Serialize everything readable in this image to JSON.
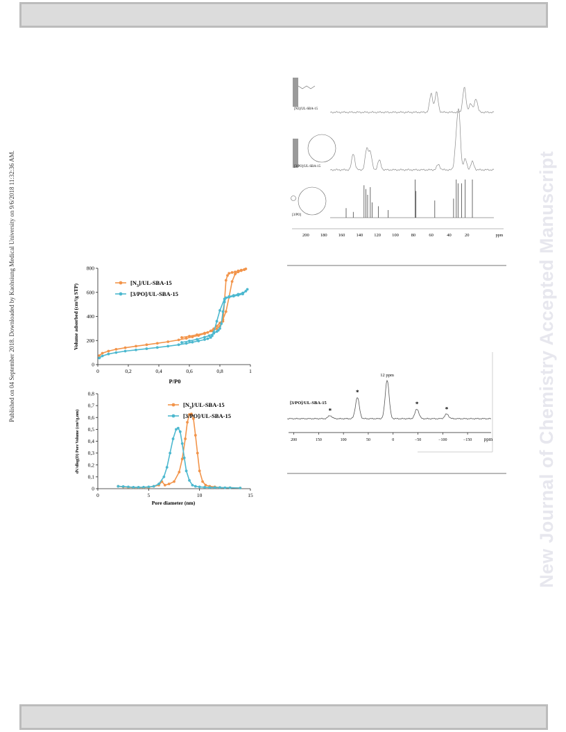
{
  "header": {
    "text": ""
  },
  "footer": {
    "text": ""
  },
  "sidebar_left": {
    "text": "Published on 04 September 2018. Downloaded by Kaohsiung Medical University on 9/6/2018 11:32:36 AM."
  },
  "watermark": {
    "text": "New Journal of Chemistry Accepted Manuscript"
  },
  "chart_data": [
    {
      "type": "line",
      "title": "",
      "xlabel": "P/P0",
      "ylabel": "Volume adsorbed (cm³/g STP)",
      "xlim": [
        0,
        1
      ],
      "ylim": [
        0,
        800
      ],
      "x_ticks": [
        "0",
        "0,2",
        "0,4",
        "0,6",
        "0,8",
        "1"
      ],
      "y_ticks": [
        "0",
        "200",
        "400",
        "600",
        "800"
      ],
      "legend_position": "top-left",
      "series": [
        {
          "name": "[N3]/UL-SBA-15",
          "color": "#f2944a",
          "x": [
            0.01,
            0.03,
            0.07,
            0.12,
            0.18,
            0.25,
            0.32,
            0.39,
            0.46,
            0.53,
            0.58,
            0.62,
            0.66,
            0.7,
            0.72,
            0.74,
            0.76,
            0.78,
            0.8,
            0.82,
            0.84,
            0.86,
            0.88,
            0.9,
            0.92,
            0.94,
            0.96,
            0.97,
            0.96,
            0.94,
            0.92,
            0.9,
            0.88,
            0.86,
            0.85,
            0.84,
            0.83,
            0.82,
            0.8,
            0.78,
            0.75,
            0.7,
            0.65,
            0.6,
            0.55
          ],
          "y": [
            75,
            95,
            112,
            127,
            140,
            153,
            165,
            177,
            190,
            205,
            218,
            230,
            242,
            257,
            267,
            280,
            298,
            320,
            345,
            375,
            440,
            560,
            690,
            752,
            770,
            780,
            788,
            795,
            790,
            785,
            778,
            770,
            765,
            758,
            740,
            700,
            520,
            360,
            320,
            298,
            280,
            262,
            248,
            236,
            225
          ]
        },
        {
          "name": "[3/PO]/UL-SBA-15",
          "color": "#4cb8cf",
          "x": [
            0.01,
            0.03,
            0.07,
            0.12,
            0.18,
            0.25,
            0.32,
            0.39,
            0.46,
            0.53,
            0.58,
            0.62,
            0.66,
            0.7,
            0.72,
            0.74,
            0.75,
            0.76,
            0.78,
            0.8,
            0.83,
            0.86,
            0.89,
            0.92,
            0.95,
            0.98,
            0.97,
            0.95,
            0.92,
            0.89,
            0.86,
            0.84,
            0.83,
            0.82,
            0.81,
            0.8,
            0.79,
            0.78,
            0.76,
            0.73,
            0.7,
            0.65,
            0.6,
            0.55
          ],
          "y": [
            55,
            72,
            88,
            100,
            112,
            122,
            132,
            142,
            153,
            165,
            176,
            186,
            196,
            208,
            215,
            225,
            240,
            270,
            360,
            450,
            545,
            560,
            568,
            576,
            586,
            625,
            610,
            595,
            585,
            575,
            565,
            555,
            520,
            440,
            340,
            300,
            285,
            275,
            260,
            240,
            228,
            210,
            196,
            184
          ]
        }
      ]
    },
    {
      "type": "line",
      "title": "",
      "xlabel": "Pore diameter (nm)",
      "ylabel": "dV/dlog(D) Pore Volume (cm³/g.nm)",
      "xlim": [
        0,
        15
      ],
      "ylim": [
        0,
        0.8
      ],
      "x_ticks": [
        "0",
        "5",
        "10",
        "15"
      ],
      "y_ticks": [
        "0",
        "0,1",
        "0,2",
        "0,3",
        "0,4",
        "0,5",
        "0,6",
        "0,7",
        "0,8"
      ],
      "legend_position": "top-right",
      "series": [
        {
          "name": "[N3]/UL-SBA-15",
          "color": "#f2944a",
          "x": [
            2,
            2.5,
            3,
            3.5,
            4,
            4.5,
            5,
            5.5,
            6,
            6.3,
            6.6,
            7,
            7.5,
            8,
            8.3,
            8.6,
            8.8,
            9,
            9.2,
            9.4,
            9.6,
            9.8,
            10,
            10.3,
            10.6,
            11,
            11.5,
            12,
            13,
            14
          ],
          "y": [
            0.02,
            0.015,
            0.012,
            0.01,
            0.01,
            0.01,
            0.012,
            0.02,
            0.03,
            0.06,
            0.03,
            0.04,
            0.06,
            0.14,
            0.25,
            0.42,
            0.56,
            0.625,
            0.63,
            0.59,
            0.45,
            0.3,
            0.15,
            0.06,
            0.03,
            0.02,
            0.015,
            0.01,
            0.008,
            0.006
          ]
        },
        {
          "name": "[3/PO]/UL-SBA-15",
          "color": "#4cb8cf",
          "x": [
            2,
            2.5,
            3,
            3.5,
            4,
            4.5,
            5,
            5.5,
            6,
            6.5,
            6.8,
            7.1,
            7.4,
            7.7,
            7.9,
            8.1,
            8.3,
            8.5,
            8.7,
            9,
            9.3,
            9.6,
            10,
            10.5,
            11,
            11.5,
            12,
            12.5,
            13,
            14
          ],
          "y": [
            0.02,
            0.018,
            0.015,
            0.012,
            0.012,
            0.013,
            0.015,
            0.02,
            0.04,
            0.1,
            0.18,
            0.3,
            0.42,
            0.5,
            0.51,
            0.48,
            0.38,
            0.26,
            0.15,
            0.07,
            0.03,
            0.02,
            0.015,
            0.012,
            0.01,
            0.01,
            0.01,
            0.008,
            0.008,
            0.006
          ]
        }
      ]
    },
    {
      "type": "line",
      "title": "",
      "xlabel": "ppm",
      "x_ticks": [
        "200",
        "180",
        "160",
        "140",
        "120",
        "100",
        "80",
        "60",
        "40",
        "20"
      ],
      "xlim": [
        210,
        -10
      ],
      "traces": [
        {
          "name": "[N3]/UL-SBA-15",
          "peaks": [
            {
              "ppm": 60,
              "h": 0.75
            },
            {
              "ppm": 54,
              "h": 0.8
            },
            {
              "ppm": 23,
              "h": 1.0
            },
            {
              "ppm": 16,
              "h": 0.35
            },
            {
              "ppm": 10,
              "h": 0.55
            }
          ]
        },
        {
          "name": "[3/PO]/UL-SBA-15",
          "peaks": [
            {
              "ppm": 147,
              "h": 0.3
            },
            {
              "ppm": 132,
              "h": 0.38
            },
            {
              "ppm": 128,
              "h": 0.32
            },
            {
              "ppm": 118,
              "h": 0.18
            },
            {
              "ppm": 52,
              "h": 0.1
            },
            {
              "ppm": 32,
              "h": 0.5
            },
            {
              "ppm": 29,
              "h": 1.0
            },
            {
              "ppm": 22,
              "h": 0.2
            },
            {
              "ppm": 14,
              "h": 0.15
            }
          ]
        },
        {
          "name": "[3/PO]",
          "lines": [
            {
              "ppm": 155,
              "h": 0.25
            },
            {
              "ppm": 147,
              "h": 0.15
            },
            {
              "ppm": 135,
              "h": 0.85
            },
            {
              "ppm": 133,
              "h": 0.75
            },
            {
              "ppm": 131,
              "h": 0.6
            },
            {
              "ppm": 128,
              "h": 0.8
            },
            {
              "ppm": 126,
              "h": 0.4
            },
            {
              "ppm": 119,
              "h": 0.3
            },
            {
              "ppm": 108,
              "h": 0.2
            },
            {
              "ppm": 78,
              "h": 1.0
            },
            {
              "ppm": 77,
              "h": 0.7
            },
            {
              "ppm": 56,
              "h": 0.45
            },
            {
              "ppm": 35,
              "h": 0.5
            },
            {
              "ppm": 32,
              "h": 1.0
            },
            {
              "ppm": 30,
              "h": 0.9
            },
            {
              "ppm": 26,
              "h": 0.9
            },
            {
              "ppm": 22,
              "h": 1.0
            },
            {
              "ppm": 14,
              "h": 1.0
            }
          ]
        }
      ]
    },
    {
      "type": "line",
      "title": "",
      "xlabel": "ppm",
      "x_ticks": [
        "200",
        "150",
        "100",
        "50",
        "0",
        "-50",
        "-100",
        "-150"
      ],
      "xlim": [
        205,
        -175
      ],
      "series_label": "[3/PO]/UL-SBA-15",
      "annotations": [
        {
          "text": "12 ppm"
        },
        {
          "text": "*"
        },
        {
          "text": "*"
        },
        {
          "text": "*"
        },
        {
          "text": "*"
        }
      ],
      "peaks": [
        {
          "ppm": 127,
          "h": 0.08,
          "star": true
        },
        {
          "ppm": 72,
          "h": 0.55,
          "star": true
        },
        {
          "ppm": 12,
          "h": 1.0,
          "star": false
        },
        {
          "ppm": -48,
          "h": 0.25,
          "star": true
        },
        {
          "ppm": -108,
          "h": 0.12,
          "star": true
        }
      ]
    }
  ]
}
